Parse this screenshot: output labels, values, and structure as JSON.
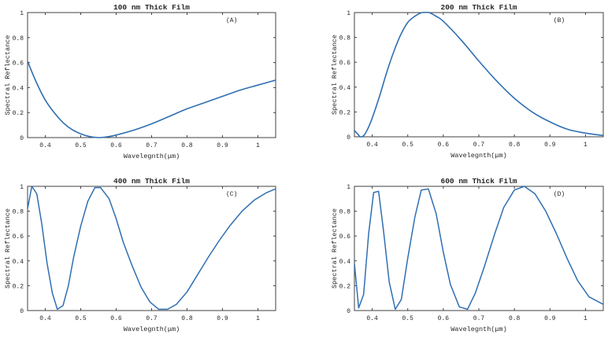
{
  "figure": {
    "line_color": "#2f6fb2",
    "axis_color": "#404040"
  },
  "chart_data": [
    {
      "type": "line",
      "title": "100 nm Thick Film",
      "annotation": "(A)",
      "xlabel": "Wavelegnth(μm)",
      "ylabel": "Spectral Reflectance",
      "xlim": [
        0.35,
        1.05
      ],
      "ylim": [
        0,
        1
      ],
      "xticks": [
        "0.4",
        "0.5",
        "0.6",
        "0.7",
        "0.8",
        "0.9",
        "1"
      ],
      "yticks": [
        "0",
        "0.2",
        "0.4",
        "0.6",
        "0.8",
        "1"
      ],
      "grid": false,
      "series": [
        {
          "name": "100 nm",
          "x": [
            0.35,
            0.375,
            0.4,
            0.425,
            0.45,
            0.475,
            0.5,
            0.525,
            0.55,
            0.575,
            0.6,
            0.65,
            0.7,
            0.75,
            0.8,
            0.85,
            0.9,
            0.95,
            1.0,
            1.05
          ],
          "y": [
            0.61,
            0.44,
            0.3,
            0.2,
            0.12,
            0.065,
            0.03,
            0.008,
            0.0,
            0.006,
            0.02,
            0.06,
            0.11,
            0.17,
            0.23,
            0.28,
            0.33,
            0.38,
            0.42,
            0.46
          ]
        }
      ]
    },
    {
      "type": "line",
      "title": "200 nm Thick Film",
      "annotation": "(B)",
      "xlabel": "Wavelegnth(μm)",
      "ylabel": "Spectral Reflectance",
      "xlim": [
        0.35,
        1.05
      ],
      "ylim": [
        0,
        1
      ],
      "xticks": [
        "0.4",
        "0.5",
        "0.6",
        "0.7",
        "0.8",
        "0.9",
        "1"
      ],
      "yticks": [
        "0",
        "0.2",
        "0.4",
        "0.6",
        "0.8",
        "1"
      ],
      "grid": false,
      "series": [
        {
          "name": "200 nm",
          "x": [
            0.35,
            0.36,
            0.367,
            0.378,
            0.39,
            0.4,
            0.42,
            0.44,
            0.46,
            0.48,
            0.5,
            0.52,
            0.54,
            0.56,
            0.58,
            0.6,
            0.65,
            0.7,
            0.75,
            0.8,
            0.85,
            0.9,
            0.95,
            1.0,
            1.05
          ],
          "y": [
            0.05,
            0.02,
            0.0,
            0.015,
            0.08,
            0.15,
            0.32,
            0.51,
            0.68,
            0.82,
            0.92,
            0.97,
            1.0,
            1.0,
            0.97,
            0.93,
            0.78,
            0.61,
            0.45,
            0.31,
            0.2,
            0.12,
            0.06,
            0.03,
            0.01
          ]
        }
      ]
    },
    {
      "type": "line",
      "title": "400 nm Thick Film",
      "annotation": "(C)",
      "xlabel": "Wavelegnth(μm)",
      "ylabel": "Spectral Reflectance",
      "xlim": [
        0.35,
        1.05
      ],
      "ylim": [
        0,
        1
      ],
      "xticks": [
        "0.4",
        "0.5",
        "0.6",
        "0.7",
        "0.8",
        "0.9",
        "1"
      ],
      "yticks": [
        "0",
        "0.2",
        "0.4",
        "0.6",
        "0.8",
        "1"
      ],
      "grid": false,
      "series": [
        {
          "name": "400 nm",
          "x": [
            0.35,
            0.362,
            0.376,
            0.39,
            0.405,
            0.42,
            0.434,
            0.45,
            0.465,
            0.48,
            0.5,
            0.52,
            0.54,
            0.556,
            0.58,
            0.6,
            0.62,
            0.645,
            0.67,
            0.695,
            0.72,
            0.745,
            0.77,
            0.8,
            0.83,
            0.86,
            0.89,
            0.92,
            0.955,
            0.99,
            1.025,
            1.05
          ],
          "y": [
            0.82,
            1.0,
            0.94,
            0.7,
            0.38,
            0.14,
            0.01,
            0.04,
            0.2,
            0.43,
            0.68,
            0.88,
            0.99,
            0.99,
            0.9,
            0.74,
            0.55,
            0.36,
            0.19,
            0.07,
            0.01,
            0.01,
            0.05,
            0.15,
            0.29,
            0.43,
            0.56,
            0.68,
            0.8,
            0.89,
            0.95,
            0.98
          ]
        }
      ]
    },
    {
      "type": "line",
      "title": "600 nm Thick Film",
      "annotation": "(D)",
      "xlabel": "Wavelegnth(μm)",
      "ylabel": "Spectral Reflectance",
      "xlim": [
        0.35,
        1.05
      ],
      "ylim": [
        0,
        1
      ],
      "xticks": [
        "0.4",
        "0.5",
        "0.6",
        "0.7",
        "0.8",
        "0.9",
        "1"
      ],
      "yticks": [
        "0",
        "0.2",
        "0.4",
        "0.6",
        "0.8",
        "1"
      ],
      "grid": false,
      "series": [
        {
          "name": "600 nm",
          "x": [
            0.35,
            0.362,
            0.376,
            0.39,
            0.404,
            0.418,
            0.432,
            0.448,
            0.465,
            0.482,
            0.5,
            0.52,
            0.538,
            0.558,
            0.58,
            0.6,
            0.62,
            0.645,
            0.668,
            0.69,
            0.715,
            0.745,
            0.77,
            0.8,
            0.828,
            0.858,
            0.888,
            0.918,
            0.948,
            0.978,
            1.01,
            1.05
          ],
          "y": [
            0.38,
            0.02,
            0.13,
            0.62,
            0.95,
            0.96,
            0.64,
            0.23,
            0.01,
            0.09,
            0.42,
            0.75,
            0.97,
            0.98,
            0.78,
            0.47,
            0.21,
            0.03,
            0.01,
            0.14,
            0.35,
            0.62,
            0.83,
            0.97,
            1.0,
            0.94,
            0.8,
            0.62,
            0.42,
            0.24,
            0.11,
            0.05
          ]
        }
      ]
    }
  ]
}
